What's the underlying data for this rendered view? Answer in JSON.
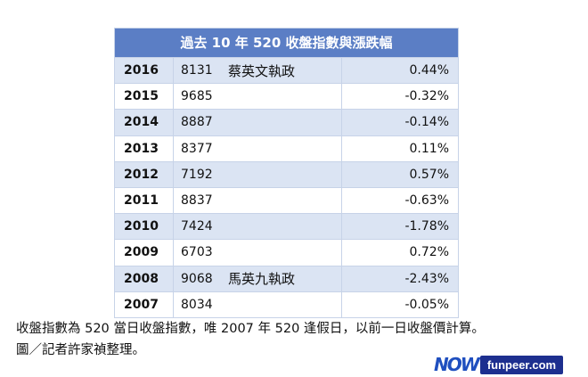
{
  "table": {
    "title": "過去 10 年 520 收盤指數與漲跌幅",
    "rows": [
      {
        "year": "2016",
        "index": "8131",
        "note": "蔡英文執政",
        "change": "0.44%"
      },
      {
        "year": "2015",
        "index": "9685",
        "note": "",
        "change": "-0.32%"
      },
      {
        "year": "2014",
        "index": "8887",
        "note": "",
        "change": "-0.14%"
      },
      {
        "year": "2013",
        "index": "8377",
        "note": "",
        "change": "0.11%"
      },
      {
        "year": "2012",
        "index": "7192",
        "note": "",
        "change": "0.57%"
      },
      {
        "year": "2011",
        "index": "8837",
        "note": "",
        "change": "-0.63%"
      },
      {
        "year": "2010",
        "index": "7424",
        "note": "",
        "change": "-1.78%"
      },
      {
        "year": "2009",
        "index": "6703",
        "note": "",
        "change": "0.72%"
      },
      {
        "year": "2008",
        "index": "9068",
        "note": "馬英九執政",
        "change": "-2.43%"
      },
      {
        "year": "2007",
        "index": "8034",
        "note": "",
        "change": "-0.05%"
      }
    ]
  },
  "caption": {
    "line1": "收盤指數為 520 當日收盤指數，唯 2007 年 520 逢假日，以前一日收盤價計算。",
    "line2": "圖／記者許家禎整理。"
  },
  "watermark": {
    "logo_text": "NOW",
    "site": "funpeer.com"
  },
  "colors": {
    "header_bg": "#5b7ec5",
    "stripe_bg": "#dbe4f3",
    "logo_blue": "#1f4fbf",
    "badge_bg": "#1d2f8f"
  }
}
